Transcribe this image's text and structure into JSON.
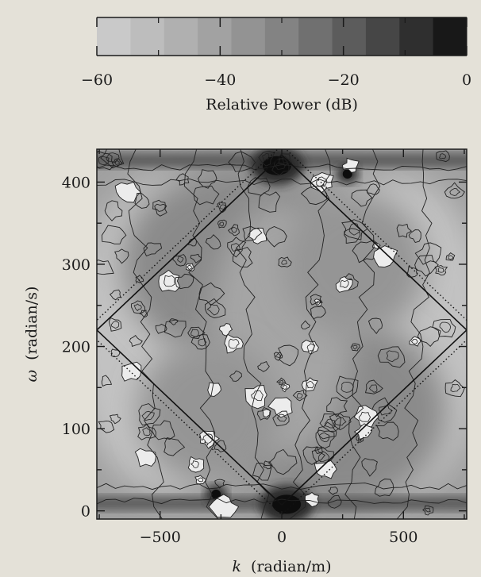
{
  "chart_data": {
    "type": "heatmap",
    "colorbar": {
      "label": "Relative Power (dB)",
      "range": [
        -60,
        0
      ],
      "ticks": [
        -60,
        -40,
        -20,
        0
      ],
      "minor_ticks": [
        -50,
        -30,
        -10
      ],
      "levels": 11,
      "colors": [
        "#c9c9c9",
        "#bdbdbd",
        "#b0b0b0",
        "#a2a2a2",
        "#939393",
        "#838383",
        "#707070",
        "#5c5c5c",
        "#464646",
        "#2f2f2f",
        "#181818"
      ]
    },
    "x_axis": {
      "label_symbol": "k",
      "label_unit": "(radian/m)",
      "range": [
        -760,
        760
      ],
      "ticks": [
        -500,
        0,
        500
      ],
      "tick_labels": [
        "−500",
        "0",
        "500"
      ]
    },
    "y_axis": {
      "label_symbol": "ω",
      "label_unit": "(radian/s)",
      "range": [
        -10,
        440
      ],
      "ticks": [
        0,
        100,
        200,
        300,
        400
      ],
      "tick_labels": [
        "0",
        "100",
        "200",
        "300",
        "400"
      ]
    },
    "dispersion_curves": {
      "k_pivot": 760,
      "omega_center": 220,
      "omega_slope": 0.28,
      "dotted_offset": 12
    },
    "power_peaks": [
      {
        "k": -20,
        "omega": 420,
        "db": -2
      },
      {
        "k": 20,
        "omega": 8,
        "db": -2
      },
      {
        "k": 270,
        "omega": 410,
        "db": -8
      },
      {
        "k": -270,
        "omega": 20,
        "db": -8
      }
    ],
    "grid": false
  }
}
